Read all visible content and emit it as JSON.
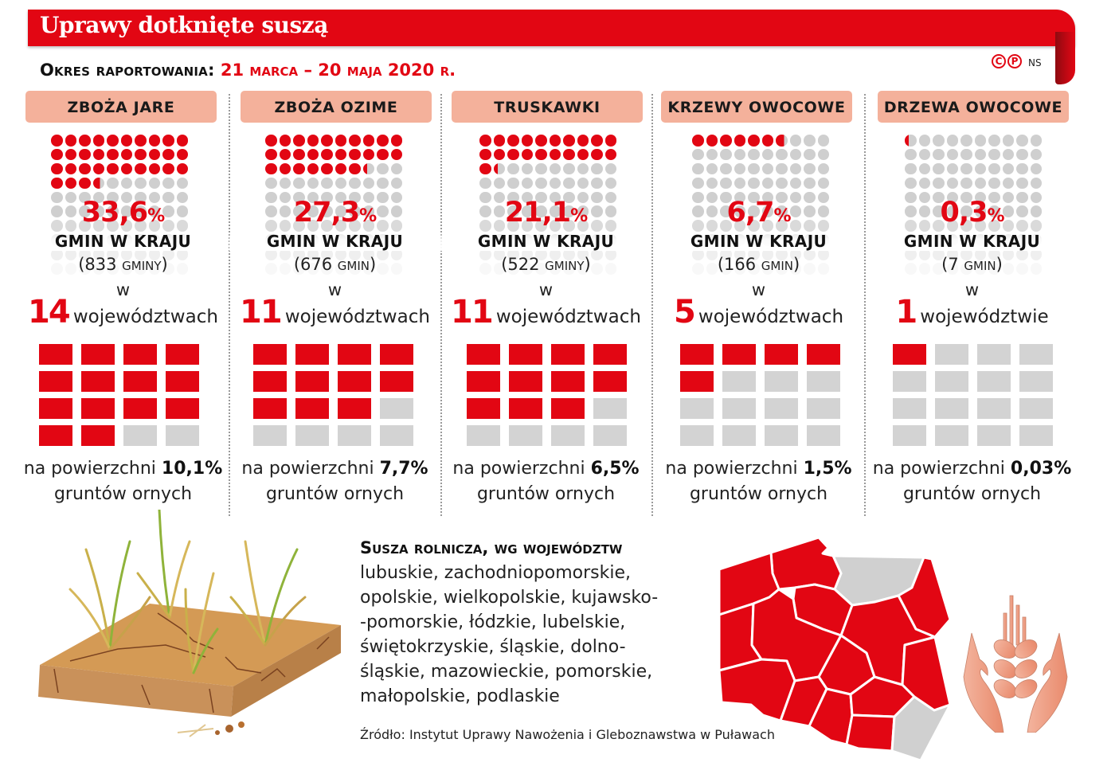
{
  "header": {
    "title": "Uprawy dotknięte suszą",
    "period_label": "Okres raportowania:",
    "period_value": "21 marca – 20 maja 2020 r.",
    "credit_icons": [
      "copyright-icon",
      "phonogram-icon"
    ],
    "credit_c": "C",
    "credit_p": "P",
    "credit_initials": "NS"
  },
  "colors": {
    "accent_red": "#e20613",
    "inactive_gray": "#cfcfcf",
    "category_bg": "#f4b19b"
  },
  "columns": [
    {
      "category": "ZBOŻA JARE",
      "percent": "33,6",
      "percent_sign": "%",
      "percent_value": 33.6,
      "gmin_label": "GMIN W KRAJU",
      "count": "(833 gminy)",
      "w": "w",
      "voiv_num": "14",
      "voiv_word": "województwach",
      "squares_filled": 14,
      "surface_prefix": "na powierzchni ",
      "surface_value": "10,1%",
      "surface_suffix": "gruntów ornych"
    },
    {
      "category": "ZBOŻA OZIME",
      "percent": "27,3",
      "percent_sign": "%",
      "percent_value": 27.3,
      "gmin_label": "GMIN W KRAJU",
      "count": "(676 gmin)",
      "w": "w",
      "voiv_num": "11",
      "voiv_word": "województwach",
      "squares_filled": 11,
      "surface_prefix": "na powierzchni ",
      "surface_value": "7,7%",
      "surface_suffix": "gruntów ornych"
    },
    {
      "category": "TRUSKAWKI",
      "percent": "21,1",
      "percent_sign": "%",
      "percent_value": 21.1,
      "gmin_label": "GMIN W KRAJU",
      "count": "(522 gminy)",
      "w": "w",
      "voiv_num": "11",
      "voiv_word": "województwach",
      "squares_filled": 11,
      "surface_prefix": "na powierzchni ",
      "surface_value": "6,5%",
      "surface_suffix": "gruntów ornych"
    },
    {
      "category": "KRZEWY OWOCOWE",
      "percent": "6,7",
      "percent_sign": "%",
      "percent_value": 6.7,
      "gmin_label": "GMIN W KRAJU",
      "count": "(166 gmin)",
      "w": "w",
      "voiv_num": "5",
      "voiv_word": "województwach",
      "squares_filled": 5,
      "surface_prefix": "na powierzchni ",
      "surface_value": "1,5%",
      "surface_suffix": "gruntów ornych"
    },
    {
      "category": "DRZEWA OWOCOWE",
      "percent": "0,3",
      "percent_sign": "%",
      "percent_value": 0.3,
      "gmin_label": "GMIN W KRAJU",
      "count": "(7 gmin)",
      "w": "w",
      "voiv_num": "1",
      "voiv_word": "województwie",
      "squares_filled": 1,
      "surface_prefix": "na powierzchni ",
      "surface_value": "0,03%",
      "surface_suffix": "gruntów ornych"
    }
  ],
  "drought": {
    "title": "Susza rolnicza, wg województw",
    "lines": [
      "lubuskie, zachodniopomorskie,",
      "opolskie, wielkopolskie, kujawsko-",
      "-pomorskie, łódzkie, lubelskie,",
      "świętokrzyskie, śląskie, dolno-",
      "śląskie, mazowieckie, pomorskie,",
      "małopolskie, podlaskie"
    ],
    "source": "Źródło: Instytut Uprawy Nawożenia i Gleboznawstwa w Puławach"
  },
  "chart_data": {
    "type": "table",
    "title": "Uprawy dotknięte suszą",
    "subtitle": "Okres raportowania: 21 marca – 20 maja 2020 r.",
    "categories": [
      "Zboża jare",
      "Zboża ozime",
      "Truskawki",
      "Krzewy owocowe",
      "Drzewa owocowe"
    ],
    "series": [
      {
        "name": "% gmin w kraju",
        "values": [
          33.6,
          27.3,
          21.1,
          6.7,
          0.3
        ]
      },
      {
        "name": "liczba gmin",
        "values": [
          833,
          676,
          522,
          166,
          7
        ]
      },
      {
        "name": "liczba województw",
        "values": [
          14,
          11,
          11,
          5,
          1
        ]
      },
      {
        "name": "% powierzchni gruntów ornych",
        "values": [
          10.1,
          7.7,
          6.5,
          1.5,
          0.03
        ]
      }
    ],
    "map_affected_voivodeships": [
      "lubuskie",
      "zachodniopomorskie",
      "opolskie",
      "wielkopolskie",
      "kujawsko-pomorskie",
      "łódzkie",
      "lubelskie",
      "świętokrzyskie",
      "śląskie",
      "dolnośląskie",
      "mazowieckie",
      "pomorskie",
      "małopolskie",
      "podlaskie"
    ],
    "map_unaffected_count": 2
  }
}
